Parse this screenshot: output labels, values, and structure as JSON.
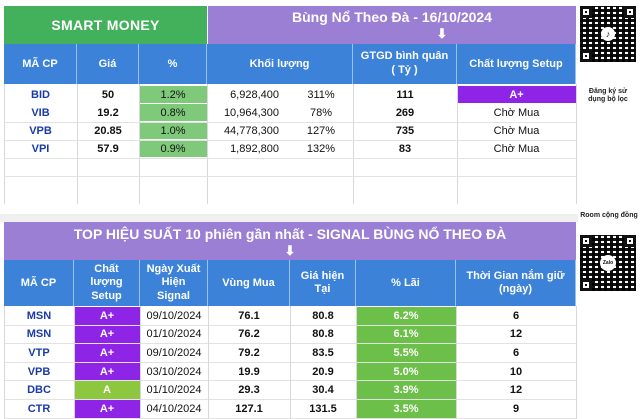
{
  "top": {
    "title_left": "SMART MONEY",
    "title_right": "Bùng Nổ Theo Đà - 16/10/2024",
    "arrow": "⬇",
    "headers": [
      "MÃ CP",
      "Giá",
      "%",
      "Khối lượng",
      "GTGD bình quân\n( Tỷ )",
      "Chất lượng Setup"
    ],
    "rows": [
      {
        "ticker": "BID",
        "price": "50",
        "pct": "1.2%",
        "volume": "6,928,400",
        "vol_pct": "311%",
        "gtgd": "111",
        "setup": "A+"
      },
      {
        "ticker": "VIB",
        "price": "19.2",
        "pct": "0.8%",
        "volume": "10,964,300",
        "vol_pct": "78%",
        "gtgd": "269",
        "setup": "Chờ Mua"
      },
      {
        "ticker": "VPB",
        "price": "20.85",
        "pct": "1.0%",
        "volume": "44,778,300",
        "vol_pct": "127%",
        "gtgd": "735",
        "setup": "Chờ Mua"
      },
      {
        "ticker": "VPI",
        "price": "57.9",
        "pct": "0.9%",
        "volume": "1,892,800",
        "vol_pct": "132%",
        "gtgd": "83",
        "setup": "Chờ Mua"
      }
    ],
    "side_note": "Đăng ký sử dụng bộ lọc"
  },
  "bottom": {
    "title": "TOP HIỆU SUẤT 10 phiên gần nhất  - SIGNAL BÙNG NỔ THEO ĐÀ",
    "arrow": "⬇",
    "headers": [
      "MÃ CP",
      "Chất lượng Setup",
      "Ngày Xuất Hiện Signal",
      "Vùng Mua",
      "Giá hiện Tại",
      "% Lãi",
      "Thời Gian nắm giữ (ngày)"
    ],
    "rows": [
      {
        "ticker": "MSN",
        "setup": "A+",
        "date": "09/10/2024",
        "buy": "76.1",
        "price": "80.8",
        "profit": "6.2%",
        "hold": "6"
      },
      {
        "ticker": "MSN",
        "setup": "A+",
        "date": "01/10/2024",
        "buy": "76.2",
        "price": "80.8",
        "profit": "6.1%",
        "hold": "12"
      },
      {
        "ticker": "VTP",
        "setup": "A+",
        "date": "09/10/2024",
        "buy": "79.2",
        "price": "83.5",
        "profit": "5.5%",
        "hold": "6"
      },
      {
        "ticker": "VPB",
        "setup": "A+",
        "date": "03/10/2024",
        "buy": "19.9",
        "price": "20.9",
        "profit": "5.0%",
        "hold": "10"
      },
      {
        "ticker": "DBC",
        "setup": "A",
        "date": "01/10/2024",
        "buy": "29.3",
        "price": "30.4",
        "profit": "3.9%",
        "hold": "12"
      },
      {
        "ticker": "CTR",
        "setup": "A+",
        "date": "04/10/2024",
        "buy": "127.1",
        "price": "131.5",
        "profit": "3.5%",
        "hold": "9"
      }
    ],
    "side_note": "Room cộng đồng",
    "qr_logo": "Zalo"
  },
  "colors": {
    "green_banner": "#43b05c",
    "purple_banner": "#9b7fd4",
    "header_blue": "#3b82d8",
    "setup_purple": "#8e24e6",
    "setup_green": "#8dc63f",
    "profit_green": "#6cc04a",
    "ticker_blue": "#1a3aa8"
  }
}
